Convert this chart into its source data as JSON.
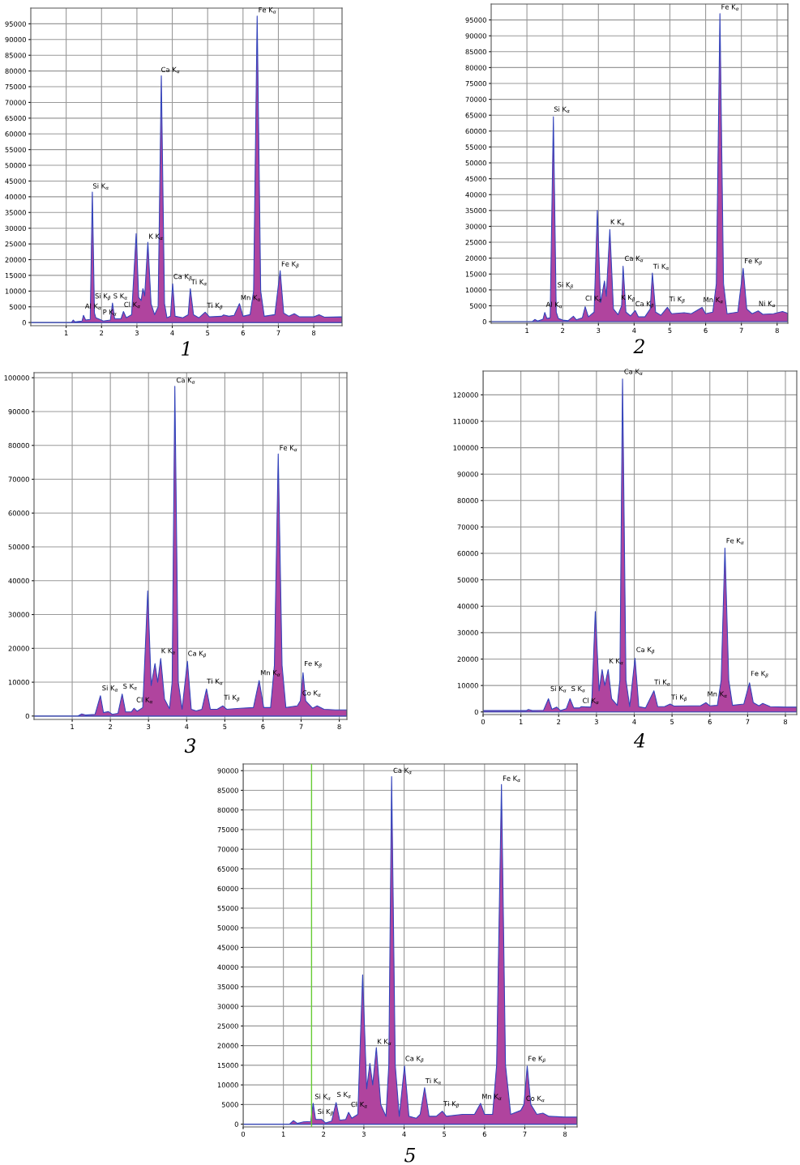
{
  "chart_data": [
    {
      "type": "area",
      "title": "1",
      "grid": true,
      "xlim": [
        0,
        8.8
      ],
      "ylim": [
        -1000,
        100000
      ],
      "xticks": [
        1,
        2,
        3,
        4,
        5,
        6,
        7,
        8
      ],
      "yticks": [
        0,
        5000,
        10000,
        15000,
        20000,
        25000,
        30000,
        35000,
        40000,
        45000,
        50000,
        55000,
        60000,
        65000,
        70000,
        75000,
        80000,
        85000,
        90000,
        95000
      ],
      "x": [
        0,
        1.15,
        1.2,
        1.25,
        1.45,
        1.49,
        1.55,
        1.68,
        1.74,
        1.8,
        1.84,
        1.95,
        2.05,
        2.25,
        2.31,
        2.37,
        2.55,
        2.62,
        2.7,
        2.85,
        2.98,
        3.05,
        3.12,
        3.17,
        3.22,
        3.31,
        3.4,
        3.5,
        3.6,
        3.69,
        3.78,
        3.85,
        3.95,
        4.01,
        4.08,
        4.3,
        4.45,
        4.51,
        4.6,
        4.75,
        4.93,
        5.05,
        5.4,
        5.45,
        5.6,
        5.75,
        5.9,
        6.0,
        6.2,
        6.3,
        6.4,
        6.5,
        6.6,
        6.9,
        7.05,
        7.15,
        7.3,
        7.45,
        7.6,
        8.0,
        8.15,
        8.3,
        8.8
      ],
      "series": [
        {
          "color": "#b0449e",
          "values": [
            0,
            0,
            800,
            200,
            500,
            2300,
            800,
            1000,
            41500,
            3000,
            1500,
            1000,
            500,
            800,
            6200,
            1200,
            1200,
            3500,
            1500,
            2500,
            28300,
            8000,
            7000,
            10800,
            8500,
            25500,
            6000,
            2500,
            5000,
            78500,
            6000,
            1500,
            2000,
            12300,
            2000,
            1500,
            2500,
            10800,
            2500,
            1500,
            3300,
            1800,
            2000,
            2400,
            2000,
            2300,
            6000,
            2000,
            2500,
            10000,
            97500,
            10000,
            2000,
            2500,
            16500,
            3000,
            2000,
            2800,
            1800,
            1800,
            2500,
            1700,
            1800
          ]
        }
      ],
      "annotations": [
        {
          "text": "Fe K$_{α}$",
          "x": 6.4,
          "y": 97500
        },
        {
          "text": "Ca K$_{α}$",
          "x": 3.65,
          "y": 78500
        },
        {
          "text": "Si K$_{α}$",
          "x": 1.72,
          "y": 41500
        },
        {
          "text": "K K$_{α}$",
          "x": 3.3,
          "y": 25500
        },
        {
          "text": "Fe K$_{β}$",
          "x": 7.05,
          "y": 16500
        },
        {
          "text": "Ca K$_{β}$",
          "x": 4.0,
          "y": 12500
        },
        {
          "text": "Ti K$_{α}$",
          "x": 4.5,
          "y": 11000
        },
        {
          "text": "Si K$_{β}$",
          "x": 1.78,
          "y": 6300
        },
        {
          "text": "S K$_{α}$",
          "x": 2.3,
          "y": 6500
        },
        {
          "text": "Cl K$_{α}$",
          "x": 2.6,
          "y": 3800
        },
        {
          "text": "Al K$_{α}$",
          "x": 1.5,
          "y": 3300
        },
        {
          "text": "P K$_{α}$",
          "x": 2.0,
          "y": 1400
        },
        {
          "text": "Ti K$_{β}$",
          "x": 4.95,
          "y": 3300
        },
        {
          "text": "Mn K$_{α}$",
          "x": 5.9,
          "y": 6000
        }
      ]
    },
    {
      "type": "area",
      "title": "2",
      "grid": true,
      "xlim": [
        0,
        8.3
      ],
      "ylim": [
        -500,
        100000
      ],
      "xticks": [
        1,
        2,
        3,
        4,
        5,
        6,
        7,
        8
      ],
      "yticks": [
        0,
        5000,
        10000,
        15000,
        20000,
        25000,
        30000,
        35000,
        40000,
        45000,
        50000,
        55000,
        60000,
        65000,
        70000,
        75000,
        80000,
        85000,
        90000,
        95000
      ],
      "x": [
        0,
        1.15,
        1.22,
        1.3,
        1.45,
        1.5,
        1.56,
        1.65,
        1.74,
        1.82,
        1.88,
        2.0,
        2.15,
        2.3,
        2.38,
        2.55,
        2.63,
        2.72,
        2.88,
        2.97,
        3.06,
        3.17,
        3.22,
        3.32,
        3.42,
        3.55,
        3.65,
        3.69,
        3.77,
        3.9,
        4.03,
        4.12,
        4.3,
        4.45,
        4.51,
        4.6,
        4.75,
        4.93,
        5.05,
        5.4,
        5.6,
        5.9,
        6.0,
        6.2,
        6.3,
        6.4,
        6.5,
        6.6,
        6.9,
        7.05,
        7.15,
        7.3,
        7.47,
        7.6,
        7.9,
        8.15,
        8.3
      ],
      "series": [
        {
          "color": "#b0449e",
          "values": [
            0,
            0,
            700,
            200,
            800,
            2900,
            1000,
            1200,
            64500,
            3000,
            1000,
            500,
            300,
            1700,
            600,
            1200,
            4700,
            1500,
            3000,
            35000,
            6000,
            12800,
            8000,
            29000,
            4000,
            2200,
            5000,
            17500,
            3000,
            1800,
            3500,
            1500,
            1500,
            4000,
            15300,
            3000,
            2000,
            4500,
            2500,
            2800,
            2500,
            4500,
            2500,
            3000,
            12000,
            97000,
            12000,
            2500,
            3000,
            16800,
            4000,
            2500,
            3400,
            2300,
            2500,
            3200,
            2600
          ]
        }
      ],
      "annotations": [
        {
          "text": "Fe K$_{α}$",
          "x": 6.4,
          "y": 97200
        },
        {
          "text": "Si K$_{α}$",
          "x": 1.72,
          "y": 65000
        },
        {
          "text": "K K$_{α}$",
          "x": 3.3,
          "y": 29500
        },
        {
          "text": "Ca K$_{α}$",
          "x": 3.7,
          "y": 18000
        },
        {
          "text": "Ti K$_{α}$",
          "x": 4.5,
          "y": 15500
        },
        {
          "text": "Fe K$_{β}$",
          "x": 7.05,
          "y": 17000
        },
        {
          "text": "Si K$_{β}$",
          "x": 1.82,
          "y": 9500
        },
        {
          "text": "Cl K$_{α}$",
          "x": 2.6,
          "y": 5500
        },
        {
          "text": "K K$_{β}$",
          "x": 3.6,
          "y": 5500
        },
        {
          "text": "Ca K$_{β}$",
          "x": 4.0,
          "y": 3500
        },
        {
          "text": "Al K$_{α}$",
          "x": 1.5,
          "y": 3500
        },
        {
          "text": "Ti K$_{β}$",
          "x": 4.95,
          "y": 5000
        },
        {
          "text": "Mn K$_{α}$",
          "x": 5.9,
          "y": 5000
        },
        {
          "text": "Ni K$_{α}$",
          "x": 7.45,
          "y": 3800
        }
      ]
    },
    {
      "type": "area",
      "title": "3",
      "grid": true,
      "xlim": [
        0,
        8.2
      ],
      "ylim": [
        -1000,
        101500
      ],
      "xticks": [
        1,
        2,
        3,
        4,
        5,
        6,
        7,
        8
      ],
      "yticks": [
        0,
        10000,
        20000,
        30000,
        40000,
        50000,
        60000,
        70000,
        80000,
        90000,
        100000
      ],
      "x": [
        0,
        1.15,
        1.25,
        1.35,
        1.6,
        1.74,
        1.82,
        1.95,
        2.05,
        2.2,
        2.31,
        2.4,
        2.55,
        2.62,
        2.7,
        2.85,
        2.98,
        3.07,
        3.17,
        3.24,
        3.32,
        3.42,
        3.55,
        3.62,
        3.69,
        3.78,
        3.88,
        4.02,
        4.12,
        4.25,
        4.4,
        4.52,
        4.62,
        4.8,
        4.95,
        5.05,
        5.4,
        5.75,
        5.9,
        6.02,
        6.2,
        6.3,
        6.4,
        6.5,
        6.6,
        6.9,
        6.98,
        7.05,
        7.12,
        7.3,
        7.42,
        7.6,
        7.9,
        8.2
      ],
      "series": [
        {
          "color": "#b0449e",
          "values": [
            0,
            0,
            600,
            300,
            500,
            6000,
            1000,
            1300,
            500,
            800,
            6500,
            1200,
            1200,
            2300,
            1400,
            2500,
            37000,
            9000,
            15500,
            10000,
            17000,
            5000,
            2200,
            10000,
            97500,
            10000,
            2000,
            16200,
            2000,
            1500,
            2000,
            8000,
            2000,
            2000,
            3000,
            2000,
            2300,
            2500,
            10500,
            2500,
            2500,
            15000,
            77500,
            15000,
            2500,
            3000,
            4500,
            12800,
            4500,
            2300,
            3000,
            2000,
            1800,
            1800
          ]
        }
      ],
      "annotations": [
        {
          "text": "Ca K$_{α}$",
          "x": 3.7,
          "y": 97500
        },
        {
          "text": "Fe K$_{α}$",
          "x": 6.4,
          "y": 77500
        },
        {
          "text": "K K$_{α}$",
          "x": 3.3,
          "y": 17500
        },
        {
          "text": "Ca K$_{β}$",
          "x": 4.0,
          "y": 16500
        },
        {
          "text": "Fe K$_{β}$",
          "x": 7.05,
          "y": 13500
        },
        {
          "text": "Mn K$_{α}$",
          "x": 5.9,
          "y": 11000
        },
        {
          "text": "Ti K$_{α}$",
          "x": 4.5,
          "y": 8500
        },
        {
          "text": "Si K$_{α}$",
          "x": 1.75,
          "y": 6500
        },
        {
          "text": "S K$_{α}$",
          "x": 2.3,
          "y": 7000
        },
        {
          "text": "Cl K$_{α}$",
          "x": 2.65,
          "y": 3000
        },
        {
          "text": "Ti K$_{β}$",
          "x": 4.95,
          "y": 3500
        },
        {
          "text": "Co K$_{α}$",
          "x": 7.0,
          "y": 5000
        }
      ]
    },
    {
      "type": "area",
      "title": "4",
      "grid": true,
      "xlim": [
        0,
        8.3
      ],
      "ylim": [
        -1000,
        129000
      ],
      "xticks": [
        0,
        1,
        2,
        3,
        4,
        5,
        6,
        7,
        8
      ],
      "yticks": [
        0,
        10000,
        20000,
        30000,
        40000,
        50000,
        60000,
        70000,
        80000,
        90000,
        100000,
        110000,
        120000
      ],
      "x": [
        0,
        1.15,
        1.2,
        1.3,
        1.6,
        1.73,
        1.82,
        1.95,
        2.05,
        2.2,
        2.3,
        2.4,
        2.55,
        2.6,
        2.85,
        2.88,
        2.97,
        3.07,
        3.15,
        3.22,
        3.31,
        3.4,
        3.55,
        3.62,
        3.69,
        3.78,
        3.88,
        4.02,
        4.12,
        4.3,
        4.52,
        4.62,
        4.8,
        4.95,
        5.05,
        5.5,
        5.75,
        5.9,
        6.0,
        6.2,
        6.3,
        6.4,
        6.5,
        6.6,
        6.9,
        7.05,
        7.15,
        7.3,
        7.4,
        7.6,
        8.0,
        8.3
      ],
      "series": [
        {
          "color": "#b0449e",
          "values": [
            500,
            500,
            900,
            500,
            600,
            5000,
            1000,
            1800,
            500,
            1200,
            5000,
            1500,
            1500,
            2000,
            1800,
            5000,
            38000,
            8000,
            16000,
            10000,
            16000,
            5000,
            2500,
            12000,
            126000,
            12000,
            2000,
            20300,
            2000,
            1500,
            8000,
            2000,
            2000,
            3000,
            2200,
            2300,
            2300,
            3500,
            2300,
            2500,
            12000,
            62000,
            12000,
            2500,
            3000,
            11000,
            3500,
            2300,
            3200,
            2000,
            1800,
            1800
          ]
        }
      ],
      "annotations": [
        {
          "text": "Ca K$_{α}$",
          "x": 3.7,
          "y": 126500
        },
        {
          "text": "Fe K$_{α}$",
          "x": 6.4,
          "y": 62500
        },
        {
          "text": "Ca K$_{β}$",
          "x": 4.02,
          "y": 21000
        },
        {
          "text": "K K$_{α}$",
          "x": 3.3,
          "y": 17000
        },
        {
          "text": "Fe K$_{β}$",
          "x": 7.05,
          "y": 12000
        },
        {
          "text": "Ti K$_{α}$",
          "x": 4.5,
          "y": 9000
        },
        {
          "text": "Si K$_{α}$",
          "x": 1.75,
          "y": 6500
        },
        {
          "text": "S K$_{α}$",
          "x": 2.3,
          "y": 6500
        },
        {
          "text": "Cl K$_{α}$",
          "x": 2.6,
          "y": 2000
        },
        {
          "text": "Ti K$_{β}$",
          "x": 4.95,
          "y": 3000
        },
        {
          "text": "Mn K$_{α}$",
          "x": 5.9,
          "y": 4500
        }
      ]
    },
    {
      "type": "area",
      "title": "5",
      "grid": true,
      "xlim": [
        0,
        8.3
      ],
      "ylim": [
        -700,
        91700
      ],
      "xticks": [
        0,
        1,
        2,
        3,
        4,
        5,
        6,
        7,
        8
      ],
      "yticks": [
        0,
        5000,
        10000,
        15000,
        20000,
        25000,
        30000,
        35000,
        40000,
        45000,
        50000,
        55000,
        60000,
        65000,
        70000,
        75000,
        80000,
        85000,
        90000
      ],
      "ref_lines": [
        {
          "axis": "x",
          "value": 1.7,
          "label": null,
          "color": "#66cc33"
        }
      ],
      "x": [
        0,
        1.15,
        1.25,
        1.35,
        1.5,
        1.68,
        1.74,
        1.8,
        1.95,
        2.05,
        2.2,
        2.31,
        2.4,
        2.55,
        2.62,
        2.7,
        2.85,
        2.97,
        3.07,
        3.15,
        3.22,
        3.31,
        3.42,
        3.55,
        3.62,
        3.69,
        3.78,
        3.88,
        4.01,
        4.12,
        4.3,
        4.4,
        4.51,
        4.62,
        4.8,
        4.95,
        5.05,
        5.45,
        5.75,
        5.9,
        6.0,
        6.2,
        6.3,
        6.42,
        6.52,
        6.65,
        6.9,
        6.98,
        7.06,
        7.15,
        7.3,
        7.45,
        7.6,
        8.0,
        8.3
      ],
      "series": [
        {
          "color": "#b0449e",
          "values": [
            0,
            0,
            900,
            200,
            600,
            700,
            5300,
            1200,
            1200,
            300,
            800,
            5500,
            1000,
            1200,
            3000,
            1500,
            2500,
            38000,
            9000,
            15500,
            10000,
            19500,
            5000,
            2000,
            15000,
            88500,
            15000,
            2000,
            14800,
            2000,
            1500,
            2500,
            9300,
            2000,
            2000,
            3300,
            2000,
            2500,
            2500,
            5300,
            2500,
            2500,
            15000,
            86500,
            15000,
            2500,
            3500,
            5000,
            14800,
            5000,
            2500,
            2800,
            2000,
            1800,
            1800
          ]
        }
      ],
      "annotations": [
        {
          "text": "Ca K$_{α}$",
          "x": 3.7,
          "y": 88500
        },
        {
          "text": "Fe K$_{α}$",
          "x": 6.42,
          "y": 86500
        },
        {
          "text": "K K$_{α}$",
          "x": 3.3,
          "y": 19500
        },
        {
          "text": "Ca K$_{β}$",
          "x": 4.0,
          "y": 15000
        },
        {
          "text": "Fe K$_{β}$",
          "x": 7.05,
          "y": 15000
        },
        {
          "text": "Ti K$_{α}$",
          "x": 4.5,
          "y": 9500
        },
        {
          "text": "Si K$_{α}$",
          "x": 1.75,
          "y": 5500
        },
        {
          "text": "Si K$_{β}$",
          "x": 1.82,
          "y": 1500
        },
        {
          "text": "S K$_{α}$",
          "x": 2.3,
          "y": 6000
        },
        {
          "text": "Cl K$_{α}$",
          "x": 2.65,
          "y": 3500
        },
        {
          "text": "Ti K$_{β}$",
          "x": 4.95,
          "y": 3500
        },
        {
          "text": "Mn K$_{α}$",
          "x": 5.9,
          "y": 5500
        },
        {
          "text": "Co K$_{α}$",
          "x": 7.0,
          "y": 5000
        }
      ]
    }
  ]
}
